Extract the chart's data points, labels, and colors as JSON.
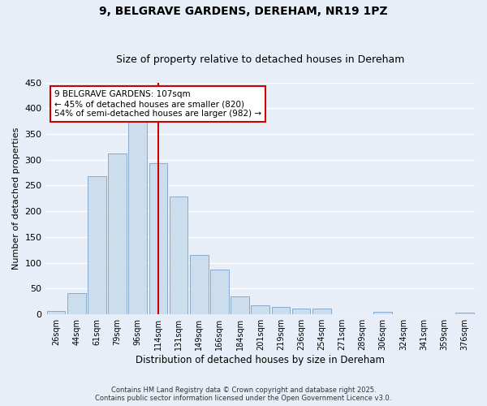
{
  "title": "9, BELGRAVE GARDENS, DEREHAM, NR19 1PZ",
  "subtitle": "Size of property relative to detached houses in Dereham",
  "xlabel": "Distribution of detached houses by size in Dereham",
  "ylabel": "Number of detached properties",
  "bar_labels": [
    "26sqm",
    "44sqm",
    "61sqm",
    "79sqm",
    "96sqm",
    "114sqm",
    "131sqm",
    "149sqm",
    "166sqm",
    "184sqm",
    "201sqm",
    "219sqm",
    "236sqm",
    "254sqm",
    "271sqm",
    "289sqm",
    "306sqm",
    "324sqm",
    "341sqm",
    "359sqm",
    "376sqm"
  ],
  "bar_values": [
    7,
    42,
    268,
    312,
    375,
    293,
    229,
    115,
    87,
    35,
    18,
    15,
    12,
    12,
    0,
    0,
    5,
    0,
    0,
    0,
    3
  ],
  "bar_color": "#ccdded",
  "bar_edge_color": "#88aacc",
  "vline_x": 5,
  "vline_color": "#cc0000",
  "ylim": [
    0,
    450
  ],
  "yticks": [
    0,
    50,
    100,
    150,
    200,
    250,
    300,
    350,
    400,
    450
  ],
  "annotation_title": "9 BELGRAVE GARDENS: 107sqm",
  "annotation_line1": "← 45% of detached houses are smaller (820)",
  "annotation_line2": "54% of semi-detached houses are larger (982) →",
  "footer1": "Contains HM Land Registry data © Crown copyright and database right 2025.",
  "footer2": "Contains public sector information licensed under the Open Government Licence v3.0.",
  "background_color": "#e8eef8",
  "plot_bg_color": "#e8eef8",
  "grid_color": "#ffffff",
  "title_fontsize": 10,
  "subtitle_fontsize": 9,
  "annotation_box_edge_color": "#cc0000",
  "ylabel_fontsize": 8,
  "xlabel_fontsize": 8.5,
  "tick_fontsize": 7,
  "ytick_fontsize": 8
}
